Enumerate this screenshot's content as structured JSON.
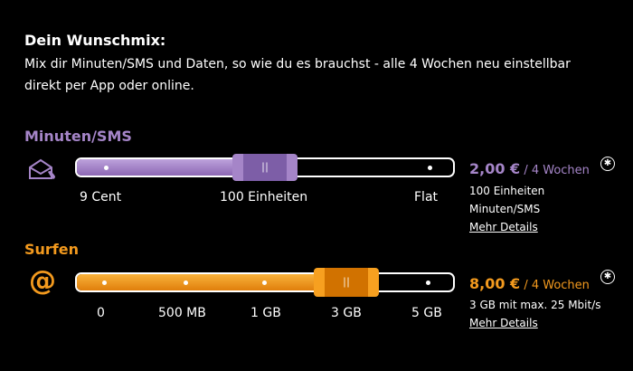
{
  "header": {
    "title": "Dein Wunschmix:",
    "description": "Mix dir Minuten/SMS und Daten, so wie du es brauchst - alle 4 Wochen neu einstellbar direkt per App oder online."
  },
  "minutes": {
    "title": "Minuten/SMS",
    "icon": "mail-phone-icon",
    "ticks": [
      "9 Cent",
      "100 Einheiten",
      "Flat"
    ],
    "selected_index": 1,
    "price": "2,00 €",
    "period": " / 4 Wochen",
    "info_lines": [
      "100 Einheiten",
      "Minuten/SMS"
    ],
    "details_link": "Mehr Details",
    "color": "#a585c8"
  },
  "surfen": {
    "title": "Surfen",
    "icon": "at-icon",
    "at_symbol": "@",
    "ticks": [
      "0",
      "500 MB",
      "1 GB",
      "3 GB",
      "5 GB"
    ],
    "selected_index": 3,
    "price": "8,00 €",
    "period": " / 4 Wochen",
    "info_lines": [
      "3 GB mit max. 25 Mbit/s"
    ],
    "details_link": "Mehr Details",
    "color": "#f39a1e"
  },
  "footnote_symbol": "✱"
}
